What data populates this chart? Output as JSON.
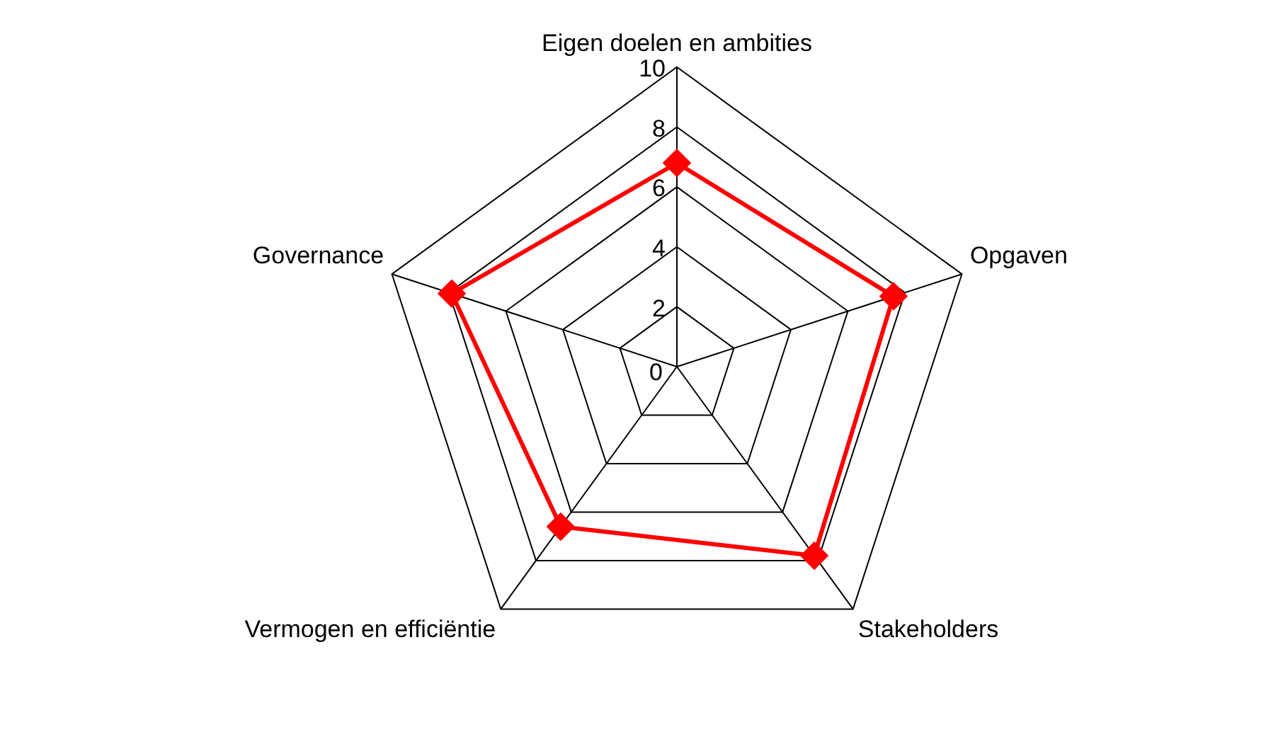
{
  "chart_data": {
    "type": "radar",
    "categories": [
      "Eigen doelen en ambities",
      "Opgaven",
      "Stakeholders",
      "Vermogen en efficiëntie",
      "Governance"
    ],
    "series": [
      {
        "color": "#ff0000",
        "values": [
          6.8,
          7.6,
          7.8,
          6.6,
          7.9
        ]
      }
    ],
    "ylim": [
      0,
      10
    ],
    "yticks": [
      0,
      2,
      4,
      6,
      8,
      10
    ],
    "grid": true,
    "legend": false,
    "marker": "diamond",
    "line_style": "solid"
  }
}
